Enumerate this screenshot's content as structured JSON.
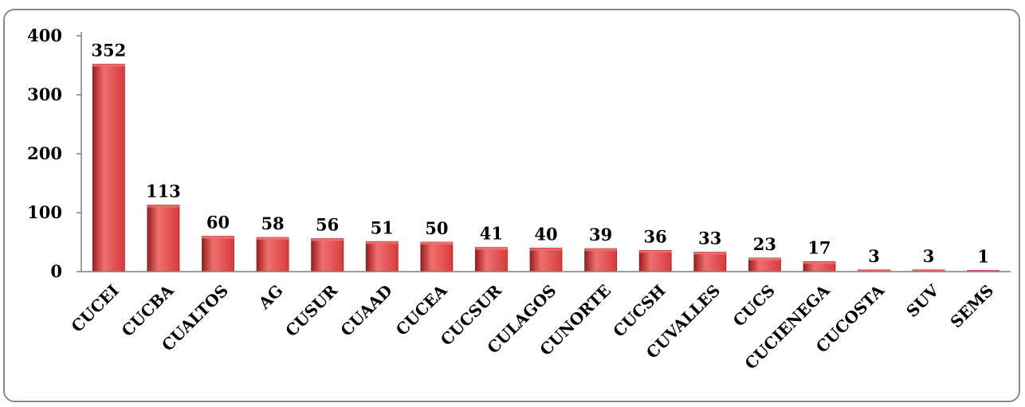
{
  "chart_data": {
    "type": "bar",
    "title": "",
    "xlabel": "",
    "ylabel": "",
    "categories": [
      "CUCEI",
      "CUCBA",
      "CUALTOS",
      "AG",
      "CUSUR",
      "CUAAD",
      "CUCEA",
      "CUCSUR",
      "CULAGOS",
      "CUNORTE",
      "CUCSH",
      "CUVALLES",
      "CUCS",
      "CUCIENEGA",
      "CUCOSTA",
      "SUV",
      "SEMS"
    ],
    "values": [
      352,
      113,
      60,
      58,
      56,
      51,
      50,
      41,
      40,
      39,
      36,
      33,
      23,
      17,
      3,
      3,
      1
    ],
    "ylim": [
      0,
      400
    ],
    "yticks": [
      0,
      100,
      200,
      300,
      400
    ],
    "grid": false,
    "legend": "none",
    "bar_color": "#d93a3a",
    "bar_dark_color": "#9e1c1c",
    "bar_light_color": "#ef7070"
  }
}
